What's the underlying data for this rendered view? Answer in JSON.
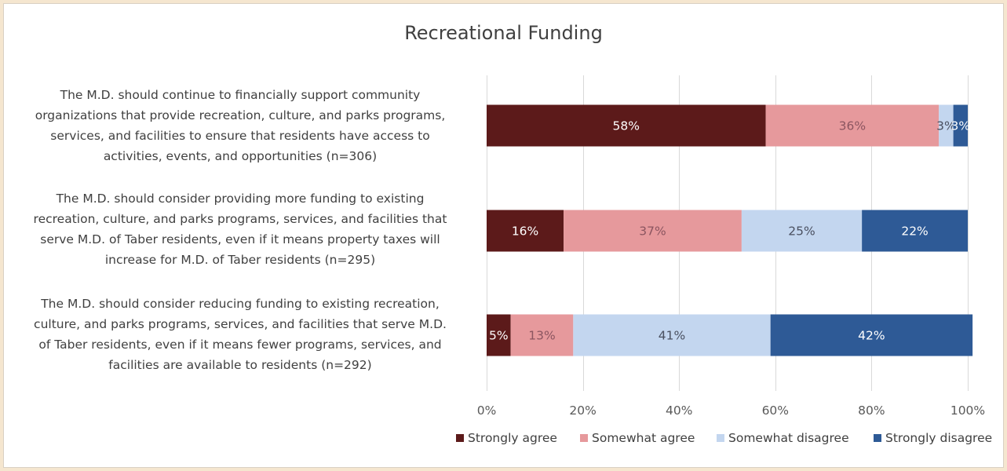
{
  "chart_data": {
    "type": "bar",
    "orientation": "horizontal",
    "stacked": true,
    "percent": true,
    "title": "Recreational Funding",
    "categories": [
      "The M.D. should continue to financially support community organizations that provide recreation, culture, and parks programs, services, and facilities to ensure that residents have access to activities, events, and opportunities (n=306)",
      "The M.D. should consider providing more funding to existing recreation, culture, and parks programs, services, and facilities that serve M.D. of Taber residents, even if it means property taxes will increase for M.D. of Taber residents (n=295)",
      "The M.D. should consider reducing funding to existing recreation, culture, and parks programs, services, and facilities that serve M.D. of Taber residents, even if it means fewer programs, services, and facilities are available to residents (n=292)"
    ],
    "category_lines": [
      [
        "The M.D. should continue to financially support community",
        "organizations that provide recreation, culture, and parks programs,",
        "services, and facilities to ensure that residents have access to",
        "activities, events, and opportunities (n=306)"
      ],
      [
        "The M.D. should consider providing more funding to existing",
        "recreation, culture, and parks programs, services, and facilities that",
        "serve M.D. of Taber residents, even if it means property taxes will",
        "increase for M.D. of Taber residents (n=295)"
      ],
      [
        "The M.D. should consider reducing funding to existing recreation,",
        "culture, and parks programs, services, and facilities that serve M.D.",
        "of Taber residents, even if it means fewer programs, services, and",
        "facilities are available to residents (n=292)"
      ]
    ],
    "series": [
      {
        "name": "Strongly agree",
        "values": [
          58,
          16,
          5
        ],
        "labels": [
          "58%",
          "16%",
          "5%"
        ]
      },
      {
        "name": "Somewhat agree",
        "values": [
          36,
          37,
          13
        ],
        "labels": [
          "36%",
          "37%",
          "13%"
        ]
      },
      {
        "name": "Somewhat disagree",
        "values": [
          3,
          25,
          41
        ],
        "labels": [
          "3%",
          "25%",
          "41%"
        ]
      },
      {
        "name": "Strongly disagree",
        "values": [
          3,
          22,
          42
        ],
        "labels": [
          "3%",
          "22%",
          "42%"
        ]
      }
    ],
    "xlim": [
      0,
      100
    ],
    "xticks": [
      "0%",
      "20%",
      "40%",
      "60%",
      "80%",
      "100%"
    ],
    "grid": true,
    "legend_position": "bottom",
    "colors": {
      "series": [
        "#5c1a1a",
        "#e6999c",
        "#c3d6ef",
        "#2e5a96"
      ],
      "label_text": [
        "#ffffff",
        "#8b5560",
        "#4a5060",
        "#ffffff"
      ],
      "grid": "#d9d9d9",
      "axis_text": "#595959"
    }
  }
}
